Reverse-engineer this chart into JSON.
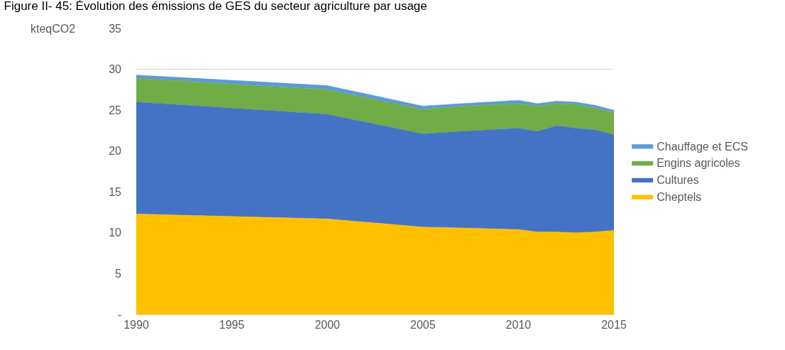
{
  "chart_data": {
    "type": "area",
    "stacked": true,
    "title": "Figure II- 45: Évolution des émissions de GES du secteur agriculture par usage",
    "ylabel": "kteqCO2",
    "x": [
      1990,
      2000,
      2005,
      2007,
      2010,
      2011,
      2012,
      2013,
      2014,
      2015
    ],
    "series": [
      {
        "name": "Cheptels",
        "color": "#ffc000",
        "values": [
          12.3,
          11.7,
          10.7,
          10.6,
          10.4,
          10.1,
          10.1,
          10.0,
          10.1,
          10.3
        ]
      },
      {
        "name": "Cultures",
        "color": "#4472c4",
        "values": [
          13.7,
          12.8,
          11.4,
          11.8,
          12.4,
          12.3,
          13.0,
          12.8,
          12.5,
          11.7
        ]
      },
      {
        "name": "Engins agricoles",
        "color": "#70ad47",
        "values": [
          2.9,
          3.0,
          3.0,
          3.1,
          3.0,
          3.1,
          2.7,
          2.9,
          2.7,
          2.7
        ]
      },
      {
        "name": "Chauffage et ECS",
        "color": "#5b9bd5",
        "values": [
          0.4,
          0.5,
          0.4,
          0.3,
          0.4,
          0.3,
          0.3,
          0.3,
          0.3,
          0.3
        ]
      }
    ],
    "xlim": [
      1990,
      2015
    ],
    "xticks": [
      1990,
      1995,
      2000,
      2005,
      2010,
      2015
    ],
    "ylim": [
      0,
      35
    ],
    "yticks": [
      {
        "value": 0,
        "label": "-"
      },
      5,
      10,
      15,
      20,
      25,
      30,
      35
    ],
    "grid": "y",
    "legend": "right"
  }
}
